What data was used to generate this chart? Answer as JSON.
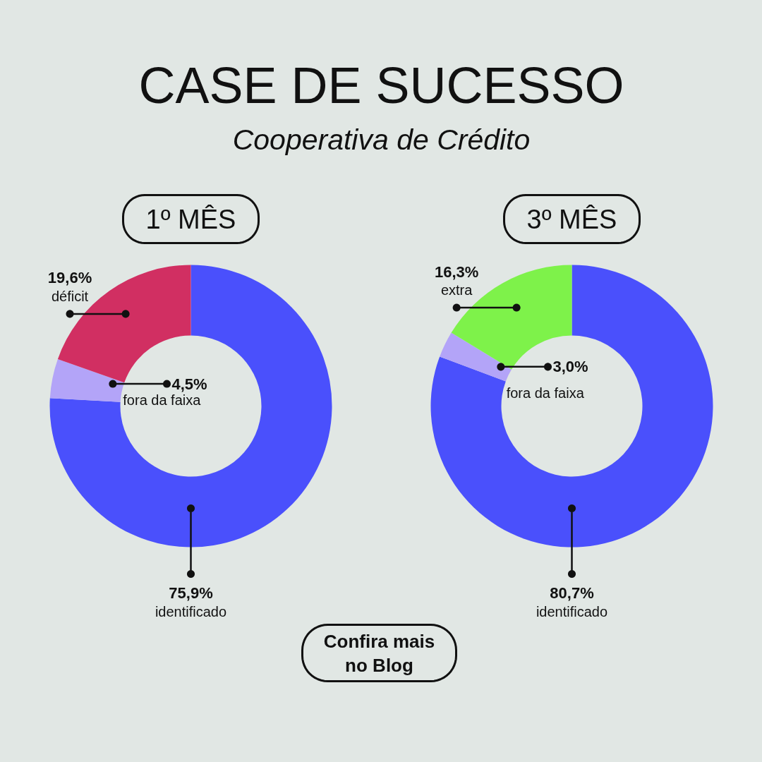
{
  "chart_data": [
    {
      "type": "other",
      "title": "CASE DE SUCESSO",
      "subtitle": "Cooperativa de Crédito"
    },
    {
      "type": "donut",
      "title": "1º MÊS",
      "categories": [
        "identificado",
        "fora da faixa",
        "déficit"
      ],
      "values": [
        75.9,
        4.5,
        19.6
      ],
      "value_labels": [
        "75,9%",
        "4,5%",
        "19,6%"
      ],
      "colors": [
        "#4a50fc",
        "#b3a4f8",
        "#d12f62"
      ]
    },
    {
      "type": "donut",
      "title": "3º MÊS",
      "categories": [
        "identificado",
        "fora da faixa",
        "extra"
      ],
      "values": [
        80.7,
        3.0,
        16.3
      ],
      "value_labels": [
        "80,7%",
        "3,0%",
        "16,3%"
      ],
      "colors": [
        "#4a50fc",
        "#b3a4f8",
        "#7ef24a"
      ]
    },
    {
      "type": "other",
      "annotations": [
        "Confira mais no Blog"
      ]
    }
  ]
}
